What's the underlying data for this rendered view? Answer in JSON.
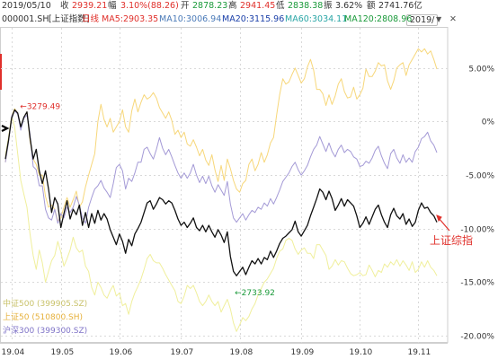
{
  "header": {
    "date": "2019/05/10",
    "close_label": "收",
    "close_value": "2939.21",
    "change_label": "幅",
    "change_value": "3.10%(88.26)",
    "open_label": "开",
    "open_value": "2878.23",
    "high_label": "高",
    "high_value": "2941.45",
    "low_label": "低",
    "low_value": "2838.38",
    "amplitude_label": "振",
    "amplitude_value": "3.62%",
    "amount_label": "额",
    "amount_value": "2741.76亿"
  },
  "ma_bar": {
    "code": "000001.SH",
    "name": "[上证指数]",
    "period": "日线",
    "ma5": "MA5:2903.35",
    "ma10": "MA10:3006.94",
    "ma20": "MA20:3115.96",
    "ma60": "MA60:3034.11",
    "ma120": "MA120:2808.96",
    "period_select": "2019/",
    "menu_arrow": "▼",
    "close_symbol": "✕"
  },
  "colors": {
    "main": "#111111",
    "zz500": "#f0ef9c",
    "sz50": "#f7d77a",
    "hs300": "#a49ad6",
    "red": "#e0302b",
    "green": "#1a9a3a",
    "grid": "#d9d9d9"
  },
  "chart_data": {
    "type": "line",
    "x_ticks": [
      "19.04",
      "19.05",
      "19.06",
      "19.07",
      "19.08",
      "19.09",
      "19.10",
      "19.11"
    ],
    "y_ticks": [
      "5.00%",
      "0%",
      "-5.00%",
      "-10.00%",
      "-15.00%",
      "-20.00%"
    ],
    "ylim": [
      -20.5,
      8.5
    ],
    "n_points": 141,
    "series": [
      {
        "name": "上证综指",
        "color_key": "main",
        "values": [
          -3.5,
          -1.8,
          0.3,
          1.1,
          0.8,
          -0.5,
          0.4,
          0.9,
          -1.5,
          -3.5,
          -2.6,
          -4.6,
          -5.8,
          -4.6,
          -6.3,
          -8.5,
          -7.1,
          -7.7,
          -9.9,
          -8.6,
          -7.4,
          -9.1,
          -8.2,
          -8.7,
          -7.8,
          -9.7,
          -8.5,
          -9.9,
          -8.6,
          -9.5,
          -8.3,
          -9.2,
          -8.6,
          -9.1,
          -10.1,
          -10.8,
          -11.5,
          -10.5,
          -11.2,
          -12.3,
          -11.0,
          -11.6,
          -10.5,
          -10.0,
          -9.4,
          -8.5,
          -7.6,
          -7.4,
          -8.2,
          -7.7,
          -7.1,
          -7.3,
          -7.7,
          -7.4,
          -7.6,
          -8.3,
          -9.1,
          -9.7,
          -9.4,
          -9.9,
          -9.5,
          -9.0,
          -9.9,
          -10.2,
          -9.7,
          -10.3,
          -9.7,
          -10.3,
          -10.8,
          -10.1,
          -10.6,
          -11.3,
          -10.3,
          -12.6,
          -14.0,
          -14.4,
          -14.0,
          -13.6,
          -14.3,
          -13.6,
          -13.0,
          -13.3,
          -12.8,
          -13.3,
          -12.7,
          -12.9,
          -12.1,
          -12.7,
          -12.1,
          -11.4,
          -10.9,
          -10.7,
          -10.4,
          -10.1,
          -9.3,
          -10.3,
          -10.7,
          -10.2,
          -9.7,
          -8.8,
          -8.0,
          -7.2,
          -6.3,
          -6.6,
          -7.3,
          -6.5,
          -7.2,
          -8.3,
          -7.8,
          -7.2,
          -7.9,
          -7.3,
          -7.6,
          -7.9,
          -8.8,
          -9.9,
          -9.5,
          -8.9,
          -9.6,
          -8.9,
          -8.2,
          -7.8,
          -8.7,
          -9.4,
          -9.9,
          -8.7,
          -8.1,
          -8.8,
          -9.1,
          -8.6,
          -9.6,
          -9.1,
          -9.8,
          -9.4,
          -8.3,
          -7.6,
          -8.1,
          -8.0,
          -8.5,
          -8.8,
          -9.4
        ]
      },
      {
        "name": "中证500 (399905.SZ)",
        "color_key": "zz500",
        "values": [
          -3.2,
          -1.5,
          0.5,
          -0.5,
          -3.0,
          -5.5,
          -6.8,
          -8.0,
          -10.5,
          -12.5,
          -13.8,
          -12.0,
          -13.2,
          -15.0,
          -14.0,
          -13.0,
          -12.5,
          -11.2,
          -12.2,
          -13.5,
          -12.8,
          -12.0,
          -10.8,
          -11.8,
          -12.2,
          -12.0,
          -13.5,
          -14.0,
          -15.5,
          -16.2,
          -15.0,
          -15.5,
          -16.2,
          -16.5,
          -15.8,
          -15.3,
          -16.3,
          -16.0,
          -17.2,
          -17.0,
          -18.0,
          -16.8,
          -16.0,
          -15.4,
          -14.7,
          -13.8,
          -12.8,
          -12.4,
          -13.0,
          -13.2,
          -13.2,
          -13.7,
          -14.3,
          -14.8,
          -15.3,
          -15.8,
          -16.8,
          -17.0,
          -16.3,
          -15.3,
          -15.6,
          -15.3,
          -16.0,
          -16.8,
          -17.2,
          -16.8,
          -16.2,
          -16.8,
          -17.2,
          -16.8,
          -17.8,
          -17.2,
          -16.6,
          -17.5,
          -18.8,
          -19.6,
          -19.0,
          -18.3,
          -18.6,
          -18.2,
          -17.5,
          -17.0,
          -16.2,
          -15.6,
          -15.0,
          -14.7,
          -14.2,
          -13.7,
          -12.8,
          -12.1,
          -11.9,
          -11.1,
          -10.9,
          -11.1,
          -11.9,
          -12.4,
          -12.0,
          -11.8,
          -12.3,
          -12.3,
          -12.8,
          -11.5,
          -11.5,
          -12.0,
          -12.5,
          -13.8,
          -13.5,
          -12.9,
          -13.4,
          -13.0,
          -13.1,
          -13.7,
          -14.2,
          -14.4,
          -14.3,
          -14.1,
          -14.4,
          -14.3,
          -13.4,
          -13.9,
          -14.5,
          -13.9,
          -14.1,
          -13.3,
          -13.6,
          -13.1,
          -13.4,
          -12.9,
          -13.5,
          -13.0,
          -13.4,
          -13.9,
          -13.1,
          -14.1,
          -13.8,
          -13.1,
          -13.6,
          -13.0,
          -13.6,
          -13.9,
          -14.4
        ]
      },
      {
        "name": "上证50 (510800.SH)",
        "color_key": "sz50",
        "values": [
          -3.8,
          -1.8,
          0.5,
          1.2,
          0.8,
          -0.5,
          0.4,
          0.9,
          -1.8,
          -3.5,
          -4.0,
          -5.0,
          -5.0,
          -7.0,
          -8.0,
          -7.8,
          -8.2,
          -9.3,
          -9.0,
          -8.0,
          -7.1,
          -8.0,
          -7.3,
          -6.5,
          -8.0,
          -7.5,
          -6.1,
          -5.0,
          -4.0,
          -3.0,
          0.0,
          1.6,
          0.2,
          -0.5,
          0.3,
          -1.0,
          -0.5,
          0.0,
          1.1,
          -0.5,
          -1.0,
          1.0,
          2.1,
          0.9,
          1.8,
          2.5,
          2.1,
          2.3,
          2.7,
          2.2,
          1.3,
          0.8,
          0.3,
          0.9,
          0.1,
          -1.2,
          -0.8,
          -1.5,
          -1.0,
          -2.1,
          -2.3,
          -1.7,
          -2.4,
          -3.2,
          -2.6,
          -3.6,
          -4.1,
          -3.1,
          -4.5,
          -5.6,
          -4.1,
          -5.5,
          -3.5,
          -4.4,
          -5.5,
          -6.3,
          -6.6,
          -5.8,
          -5.5,
          -4.0,
          -3.5,
          -4.6,
          -4.0,
          -2.9,
          -3.8,
          -3.1,
          -2.0,
          -1.5,
          0.6,
          2.5,
          4.0,
          3.5,
          3.7,
          4.4,
          5.0,
          4.3,
          3.6,
          4.0,
          5.1,
          5.8,
          4.8,
          3.0,
          3.0,
          2.6,
          1.5,
          2.5,
          1.6,
          2.4,
          3.5,
          4.0,
          2.8,
          2.2,
          2.3,
          3.2,
          2.1,
          2.5,
          3.1,
          4.9,
          4.2,
          4.2,
          4.7,
          5.5,
          5.2,
          5.3,
          3.8,
          3.0,
          3.8,
          5.0,
          5.3,
          5.5,
          4.3,
          5.3,
          5.8,
          6.3,
          6.8,
          6.5,
          6.8,
          6.3,
          6.6,
          5.8,
          4.9
        ]
      },
      {
        "name": "沪深300 (399300.SZ)",
        "color_key": "hs300",
        "values": [
          -3.8,
          -2.0,
          0.5,
          1.0,
          0.7,
          -0.8,
          0.3,
          0.6,
          -1.2,
          -4.2,
          -4.5,
          -6.0,
          -6.0,
          -8.2,
          -9.0,
          -9.2,
          -8.2,
          -9.5,
          -8.6,
          -9.0,
          -8.0,
          -8.5,
          -8.0,
          -7.0,
          -7.8,
          -9.0,
          -9.5,
          -8.0,
          -7.1,
          -6.3,
          -6.0,
          -5.5,
          -6.2,
          -6.6,
          -7.1,
          -5.8,
          -4.3,
          -4.0,
          -4.6,
          -6.3,
          -5.3,
          -5.6,
          -4.8,
          -3.8,
          -3.8,
          -2.6,
          -2.4,
          -3.0,
          -3.5,
          -2.6,
          -1.5,
          -2.5,
          -3.1,
          -2.6,
          -3.3,
          -4.1,
          -4.8,
          -5.3,
          -4.8,
          -5.3,
          -4.8,
          -4.0,
          -5.0,
          -5.7,
          -5.1,
          -5.8,
          -5.1,
          -6.0,
          -6.6,
          -5.9,
          -6.4,
          -6.9,
          -5.6,
          -7.7,
          -9.0,
          -9.4,
          -9.0,
          -8.6,
          -9.2,
          -8.7,
          -8.3,
          -8.5,
          -8.0,
          -8.2,
          -7.6,
          -7.9,
          -7.2,
          -7.7,
          -7.1,
          -6.4,
          -5.6,
          -5.2,
          -4.8,
          -4.2,
          -3.8,
          -4.5,
          -5.0,
          -4.6,
          -4.1,
          -3.3,
          -2.6,
          -2.2,
          -1.4,
          -2.1,
          -2.8,
          -2.0,
          -2.8,
          -3.3,
          -2.6,
          -2.2,
          -2.9,
          -2.6,
          -2.8,
          -3.3,
          -3.5,
          -4.2,
          -4.1,
          -3.7,
          -3.9,
          -3.4,
          -2.7,
          -2.3,
          -3.2,
          -3.9,
          -4.4,
          -3.0,
          -2.6,
          -3.4,
          -3.9,
          -3.1,
          -3.8,
          -3.4,
          -3.8,
          -2.8,
          -2.4,
          -1.6,
          -1.4,
          -1.0,
          -1.8,
          -2.2,
          -2.9
        ]
      }
    ],
    "annotations": {
      "high_label": "3279.49",
      "low_label": "2733.92",
      "series_label": "上证综指",
      "left_arrow": "←"
    }
  }
}
